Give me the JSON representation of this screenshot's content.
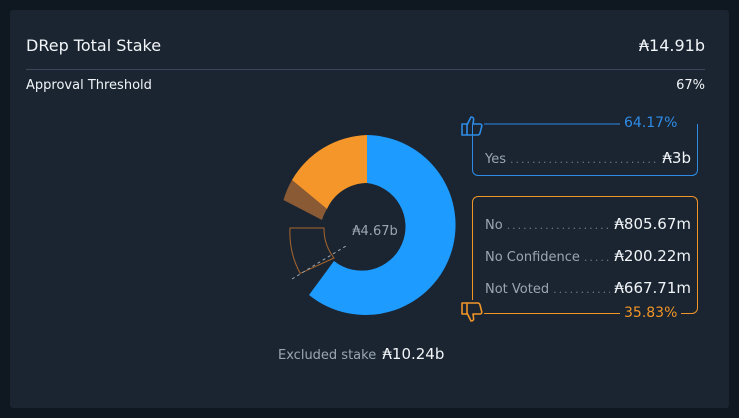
{
  "header": {
    "title": "DRep Total Stake",
    "total": "₳14.91b"
  },
  "threshold": {
    "label": "Approval Threshold",
    "value": "67%"
  },
  "donut": {
    "center_label": "₳4.67b"
  },
  "excluded": {
    "label": "Excluded stake",
    "value": "₳10.24b"
  },
  "yes": {
    "percent": "64.17%",
    "label": "Yes",
    "amount": "₳3b"
  },
  "no_group": {
    "percent": "35.83%",
    "rows": [
      {
        "label": "No",
        "amount": "₳805.67m"
      },
      {
        "label": "No Confidence",
        "amount": "₳200.22m"
      },
      {
        "label": "Not Voted",
        "amount": "₳667.71m"
      }
    ]
  },
  "colors": {
    "yes": "#1e9bff",
    "no": "#f5962a",
    "no_confidence": "#8a5a35",
    "accent_blue": "#2f8ce6",
    "accent_orange": "#f19527"
  },
  "icons": {
    "yes": "thumbs-up-icon",
    "no": "thumbs-down-icon"
  }
}
